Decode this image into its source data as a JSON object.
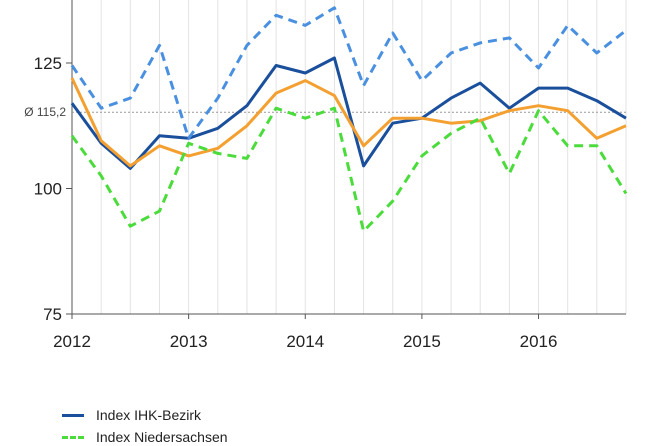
{
  "chart_data": {
    "type": "line",
    "title": "",
    "xlabel": "",
    "ylabel": "",
    "ylim": [
      75,
      150
    ],
    "y_ticks": [
      75,
      100,
      125
    ],
    "x_ticks": [
      "2012",
      "2013",
      "2014",
      "2015",
      "2016"
    ],
    "grid": "vertical lines per quarter",
    "average_line": {
      "label": "Ø 115,2",
      "value": 115.2
    },
    "x": [
      2012.0,
      2012.25,
      2012.5,
      2012.75,
      2013.0,
      2013.25,
      2013.5,
      2013.75,
      2014.0,
      2014.25,
      2014.5,
      2014.75,
      2015.0,
      2015.25,
      2015.5,
      2015.75,
      2016.0,
      2016.25,
      2016.5,
      2016.75
    ],
    "series": [
      {
        "name": "Index IHK-Bezirk",
        "color": "#1a4f9c",
        "style": "solid",
        "values": [
          117,
          109,
          104,
          110.5,
          110,
          112,
          116.5,
          124.5,
          123,
          126,
          104.5,
          113,
          114,
          118,
          121,
          116,
          120,
          120,
          117.5,
          114
        ]
      },
      {
        "name": "",
        "color": "#f4a030",
        "style": "solid",
        "values": [
          122,
          109.5,
          104.5,
          108.5,
          106.5,
          108,
          112.5,
          119,
          121.5,
          118.5,
          108.5,
          114,
          114,
          113,
          113.5,
          115.5,
          116.5,
          115.5,
          110,
          112.5
        ]
      },
      {
        "name": "",
        "color": "#4a90e0",
        "style": "dashed",
        "values": [
          124.5,
          116,
          118,
          128.5,
          110,
          118,
          128.5,
          134.5,
          132.5,
          136,
          120.5,
          131,
          121.5,
          127,
          129,
          130,
          124,
          132.5,
          127,
          131.5
        ]
      },
      {
        "name": "",
        "color": "#4bdc3c",
        "style": "dashed",
        "values": [
          110.5,
          102.5,
          92.5,
          95.5,
          109,
          107,
          106,
          116,
          114,
          116,
          91.5,
          97.5,
          106.5,
          111,
          114,
          103,
          115.5,
          108.5,
          108.5,
          99
        ]
      }
    ]
  },
  "legend": [
    {
      "label": "Index IHK-Bezirk",
      "color": "#1a4f9c",
      "style": "solid"
    },
    {
      "label": "Index Niedersachsen",
      "color": "#4bdc3c",
      "style": "dashed"
    }
  ]
}
